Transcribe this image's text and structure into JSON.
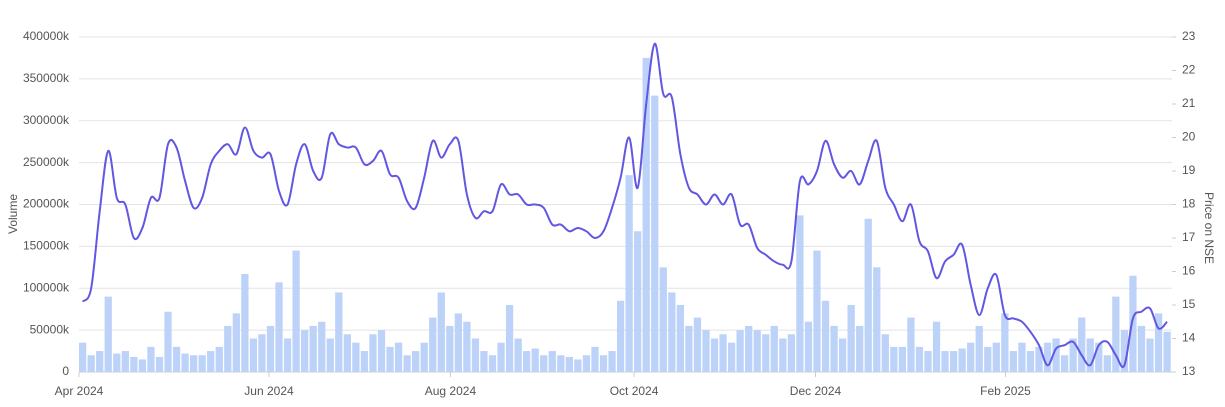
{
  "chart_data": {
    "type": "bar-line",
    "y_label": "Volume",
    "y2_label": "Price on NSE",
    "x": [
      0,
      2,
      4,
      6,
      8,
      10,
      12,
      14,
      16,
      18,
      20,
      22,
      24,
      26,
      28,
      30,
      32,
      34,
      36,
      38,
      40,
      42,
      44,
      46,
      48,
      50,
      52,
      54,
      56,
      58,
      60,
      62,
      64,
      66,
      68,
      70,
      72,
      74,
      76,
      78,
      80,
      82,
      84,
      86,
      88,
      90,
      92,
      94,
      96,
      98,
      100,
      102,
      104,
      106,
      108,
      110,
      112,
      114,
      116,
      118,
      120,
      122,
      124,
      126,
      128,
      130,
      132,
      134,
      136,
      138,
      140,
      142,
      144,
      146,
      148,
      150,
      152,
      154,
      156,
      158,
      160,
      162,
      164,
      166,
      168,
      170,
      172,
      174,
      176,
      178,
      180,
      182,
      184,
      186,
      188,
      190,
      192,
      194,
      196,
      198,
      200,
      202,
      204,
      206,
      208,
      210,
      212,
      214,
      216,
      218,
      220,
      222,
      224,
      226,
      228,
      230,
      232,
      234,
      236,
      238,
      240,
      242,
      244,
      246,
      248,
      250,
      252,
      254
    ],
    "xlim": [
      0,
      256
    ],
    "xticks": [
      {
        "value": 0,
        "label": "Apr 2024"
      },
      {
        "value": 44.5,
        "label": "Jun 2024"
      },
      {
        "value": 87,
        "label": "Aug 2024"
      },
      {
        "value": 130,
        "label": "Oct 2024"
      },
      {
        "value": 172.5,
        "label": "Dec 2024"
      },
      {
        "value": 217,
        "label": "Feb 2025"
      }
    ],
    "ylim": [
      0,
      400000000
    ],
    "yticks": [
      0,
      {
        "value": 50000000,
        "label": "50000k"
      },
      {
        "value": 100000000,
        "label": "100000k"
      },
      {
        "value": 150000000,
        "label": "150000k"
      },
      {
        "value": 200000000,
        "label": "200000k"
      },
      {
        "value": 250000000,
        "label": "250000k"
      },
      {
        "value": 300000000,
        "label": "300000k"
      },
      {
        "value": 350000000,
        "label": "350000k"
      },
      {
        "value": 400000000,
        "label": "400000k"
      }
    ],
    "y2lim": [
      13,
      23
    ],
    "y2ticks": [
      13,
      14,
      15,
      16,
      17,
      18,
      19,
      20,
      21,
      22,
      23
    ],
    "grid": true,
    "series": [
      {
        "type": "bar",
        "color": "#bcd2f8",
        "values": [
          35000000,
          20000000,
          25000000,
          90000000,
          22000000,
          25000000,
          18000000,
          15000000,
          30000000,
          18000000,
          72000000,
          30000000,
          22000000,
          20000000,
          20000000,
          25000000,
          30000000,
          55000000,
          70000000,
          117000000,
          40000000,
          45000000,
          55000000,
          107000000,
          40000000,
          145000000,
          50000000,
          55000000,
          60000000,
          40000000,
          95000000,
          45000000,
          35000000,
          25000000,
          45000000,
          50000000,
          30000000,
          35000000,
          20000000,
          25000000,
          35000000,
          65000000,
          95000000,
          55000000,
          70000000,
          60000000,
          40000000,
          25000000,
          20000000,
          35000000,
          80000000,
          40000000,
          25000000,
          28000000,
          20000000,
          25000000,
          20000000,
          18000000,
          15000000,
          20000000,
          30000000,
          20000000,
          25000000,
          85000000,
          235000000,
          168000000,
          375000000,
          330000000,
          125000000,
          95000000,
          80000000,
          55000000,
          65000000,
          50000000,
          40000000,
          45000000,
          35000000,
          50000000,
          55000000,
          50000000,
          45000000,
          55000000,
          40000000,
          45000000,
          187000000,
          60000000,
          145000000,
          85000000,
          55000000,
          40000000,
          80000000,
          55000000,
          183000000,
          125000000,
          45000000,
          30000000,
          30000000,
          65000000,
          30000000,
          25000000,
          60000000,
          25000000,
          25000000,
          28000000,
          35000000,
          55000000,
          30000000,
          35000000,
          70000000,
          25000000,
          35000000,
          25000000,
          30000000,
          35000000,
          40000000,
          20000000,
          40000000,
          65000000,
          40000000,
          35000000,
          20000000,
          90000000,
          50000000,
          115000000,
          55000000,
          40000000,
          70000000,
          48000000
        ]
      },
      {
        "type": "line",
        "axis": "y2",
        "color": "#6157e2",
        "values": [
          15.1,
          15.5,
          17.8,
          19.6,
          18.2,
          18.0,
          17.0,
          17.3,
          18.2,
          18.2,
          19.8,
          19.7,
          18.7,
          17.9,
          18.2,
          19.2,
          19.6,
          19.8,
          19.5,
          20.3,
          19.6,
          19.4,
          19.5,
          18.4,
          18.0,
          19.2,
          19.8,
          19.0,
          18.8,
          20.1,
          19.8,
          19.7,
          19.7,
          19.2,
          19.3,
          19.6,
          18.9,
          18.8,
          18.1,
          17.9,
          18.8,
          19.9,
          19.4,
          19.8,
          19.9,
          18.3,
          17.6,
          17.8,
          17.8,
          18.6,
          18.3,
          18.3,
          18.0,
          18.0,
          17.9,
          17.4,
          17.4,
          17.2,
          17.3,
          17.2,
          17.0,
          17.2,
          17.9,
          18.8,
          20.0,
          18.5,
          21.0,
          22.8,
          21.3,
          21.2,
          19.5,
          18.5,
          18.3,
          18.0,
          18.3,
          18.0,
          18.3,
          17.4,
          17.4,
          16.7,
          16.5,
          16.3,
          16.2,
          16.3,
          18.7,
          18.6,
          19.0,
          19.9,
          19.2,
          18.8,
          19.0,
          18.6,
          19.3,
          19.9,
          18.5,
          18.0,
          17.5,
          18.0,
          16.9,
          16.6,
          15.8,
          16.3,
          16.5,
          16.8,
          15.6,
          14.7,
          15.5,
          15.9,
          14.7,
          14.6,
          14.5,
          14.2,
          13.8,
          13.2,
          13.7,
          13.8,
          13.9,
          13.5,
          13.2,
          13.8,
          13.9,
          13.5,
          13.2,
          14.6,
          14.8,
          14.9,
          14.3,
          14.5
        ]
      }
    ]
  }
}
